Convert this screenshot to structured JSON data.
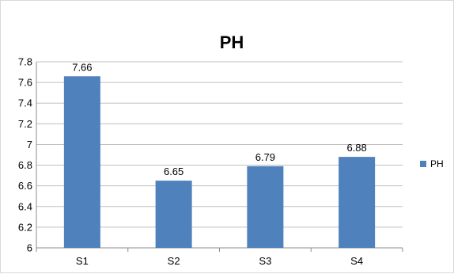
{
  "chart_data": {
    "type": "bar",
    "title": "PH",
    "xlabel": "",
    "ylabel": "",
    "categories": [
      "S1",
      "S2",
      "S3",
      "S4"
    ],
    "series": [
      {
        "name": "PH",
        "values": [
          7.66,
          6.65,
          6.79,
          6.88
        ],
        "data_labels": [
          "7.66",
          "6.65",
          "6.79",
          "6.88"
        ],
        "color": "#4f81bd"
      }
    ],
    "ylim": [
      6,
      7.8
    ],
    "y_ticks": [
      "6",
      "6.2",
      "6.4",
      "6.6",
      "6.8",
      "7",
      "7.2",
      "7.4",
      "7.6",
      "7.8"
    ],
    "grid": "horizontal",
    "gridline_color": "#bfbfbf",
    "legend": {
      "position": "right",
      "entries": [
        "PH"
      ]
    }
  }
}
